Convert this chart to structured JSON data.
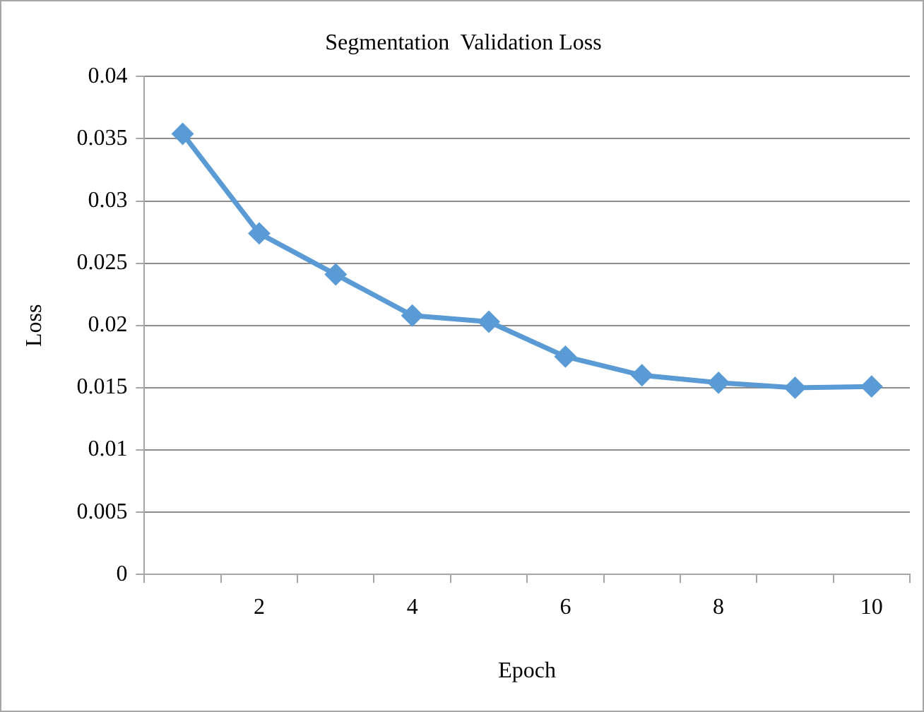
{
  "chart_data": {
    "type": "line",
    "title": "Segmentation  Validation Loss",
    "xlabel": "Epoch",
    "ylabel": "Loss",
    "categories": [
      null,
      "2",
      null,
      "4",
      null,
      "6",
      null,
      "8",
      null,
      "10"
    ],
    "series": [
      {
        "color": "#5b9bd5",
        "values": [
          0.0354,
          0.0274,
          0.0241,
          0.0208,
          0.0203,
          0.0175,
          0.016,
          0.0154,
          0.015,
          0.0151
        ]
      }
    ],
    "ylim": [
      0,
      0.04
    ],
    "yticks": [
      0,
      0.005,
      0.01,
      0.015,
      0.02,
      0.025,
      0.03,
      0.035,
      0.04
    ],
    "grid": "y",
    "marker": "diamond"
  }
}
